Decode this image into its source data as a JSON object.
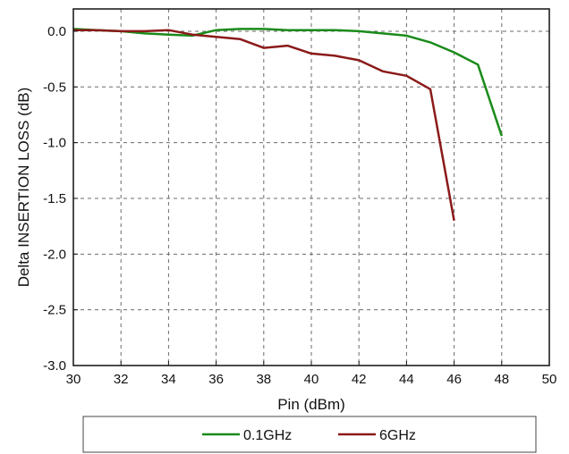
{
  "chart_data": {
    "type": "line",
    "title": "",
    "xlabel": "Pin (dBm)",
    "ylabel": "Delta INSERTION LOSS (dB)",
    "xlim": [
      30,
      50
    ],
    "ylim": [
      -3.0,
      0.2
    ],
    "xticks": [
      30,
      32,
      34,
      36,
      38,
      40,
      42,
      44,
      46,
      48,
      50
    ],
    "yticks": [
      0.0,
      -0.5,
      -1.0,
      -1.5,
      -2.0,
      -2.5,
      -3.0
    ],
    "xtick_labels": [
      "30",
      "32",
      "34",
      "36",
      "38",
      "40",
      "42",
      "44",
      "46",
      "48",
      "50"
    ],
    "ytick_labels": [
      "0.0",
      "-0.5",
      "-1.0",
      "-1.5",
      "-2.0",
      "-2.5",
      "-3.0"
    ],
    "grid": true,
    "legend_position": "bottom",
    "series": [
      {
        "name": "0.1GHz",
        "color": "#1a8a1a",
        "x": [
          30,
          31,
          32,
          33,
          34,
          35,
          36,
          37,
          38,
          39,
          40,
          41,
          42,
          43,
          44,
          45,
          46,
          47,
          48
        ],
        "y": [
          0.02,
          0.01,
          0.0,
          -0.02,
          -0.03,
          -0.04,
          0.01,
          0.02,
          0.02,
          0.01,
          0.01,
          0.01,
          0.0,
          -0.02,
          -0.04,
          -0.1,
          -0.19,
          -0.3,
          -0.94
        ]
      },
      {
        "name": "6GHz",
        "color": "#8b1a1a",
        "x": [
          30,
          31,
          32,
          33,
          34,
          35,
          36,
          37,
          38,
          39,
          40,
          41,
          42,
          43,
          44,
          45,
          46
        ],
        "y": [
          0.01,
          0.01,
          0.0,
          0.0,
          0.01,
          -0.03,
          -0.05,
          -0.07,
          -0.15,
          -0.13,
          -0.2,
          -0.22,
          -0.26,
          -0.36,
          -0.4,
          -0.52,
          -1.7
        ]
      }
    ]
  }
}
